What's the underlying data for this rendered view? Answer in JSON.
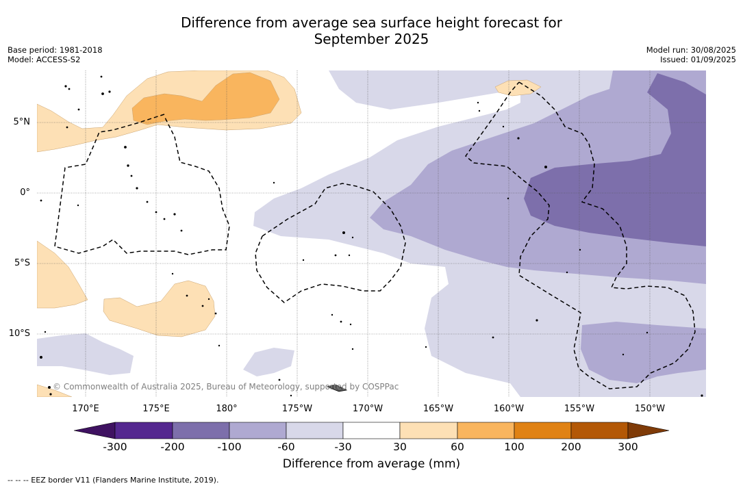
{
  "title_line1": "Difference from average sea surface height forecast for",
  "title_line2": "September 2025",
  "meta_left": {
    "base_period": "Base period: 1981-2018",
    "model": "Model: ACCESS-S2"
  },
  "meta_right": {
    "model_run": "Model run: 30/08/2025",
    "issued": "Issued: 01/09/2025"
  },
  "copyright": "© Commonwealth of Australia 2025, Bureau of Meteorology, supported by COSPPac",
  "map": {
    "lon_labels": [
      "170°E",
      "175°E",
      "180°",
      "175°W",
      "170°W",
      "165°W",
      "160°W",
      "155°W",
      "150°W"
    ],
    "lat_labels": [
      "5°N",
      "0°",
      "5°S",
      "10°S"
    ]
  },
  "colorbar": {
    "title": "Difference from average (mm)",
    "ticks": [
      "-300",
      "-200",
      "-100",
      "-60",
      "-30",
      "30",
      "60",
      "100",
      "200",
      "300"
    ],
    "colors": [
      "#3f1261",
      "#54278f",
      "#7d6fab",
      "#afa9d1",
      "#d8d8e9",
      "#ffffff",
      "#fde0b5",
      "#f9b55e",
      "#e08214",
      "#b35806",
      "#7f3b08"
    ]
  },
  "footer": "--  --  -- EEZ border V11 (Flanders Marine Institute, 2019)."
}
